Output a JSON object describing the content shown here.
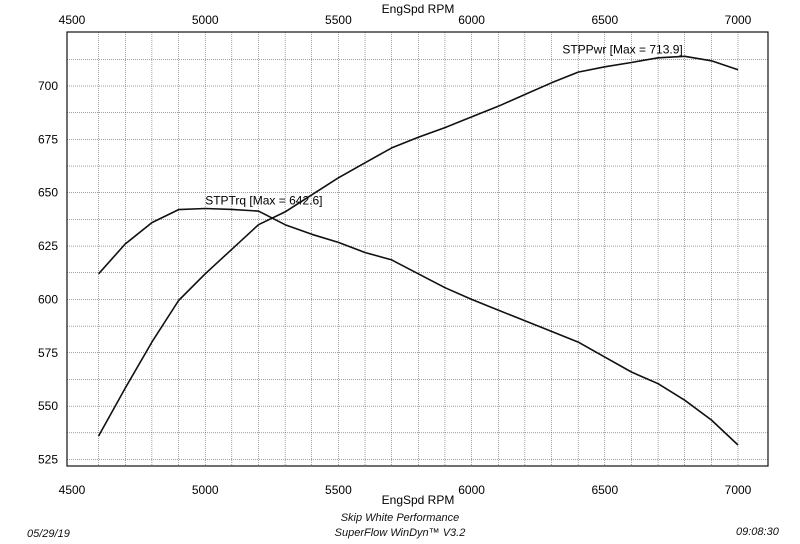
{
  "chart_data": {
    "type": "line",
    "xlabel": "EngSpd RPM",
    "xlim": [
      4500,
      7000
    ],
    "ylim": [
      525,
      725
    ],
    "x_ticks": [
      4500,
      5000,
      5500,
      6000,
      6500,
      7000
    ],
    "y_ticks": [
      525,
      550,
      575,
      600,
      625,
      650,
      675,
      700
    ],
    "grid": true,
    "series": [
      {
        "name": "STPTrq",
        "label": "STPTrq [Max = 642.6]",
        "x": [
          4600,
          4700,
          4800,
          4900,
          5000,
          5100,
          5200,
          5300,
          5400,
          5500,
          5600,
          5700,
          5800,
          5900,
          6000,
          6100,
          6200,
          6300,
          6400,
          6500,
          6600,
          6700,
          6800,
          6900,
          7000
        ],
        "y": [
          612,
          626,
          636,
          642.1,
          642.6,
          642.2,
          641.4,
          635,
          630.5,
          626.7,
          622,
          618.5,
          612,
          605.5,
          600,
          595,
          590,
          585,
          580,
          573,
          566,
          560.5,
          552.8,
          543.5,
          531.8
        ]
      },
      {
        "name": "STPPwr",
        "label": "STPPwr [Max = 713.9]",
        "x": [
          4600,
          4700,
          4800,
          4900,
          5000,
          5100,
          5200,
          5300,
          5400,
          5500,
          5600,
          5700,
          5800,
          5900,
          6000,
          6100,
          6200,
          6300,
          6400,
          6500,
          6600,
          6700,
          6800,
          6900,
          7000
        ],
        "y": [
          536,
          558.5,
          580,
          599.5,
          612,
          623.5,
          635,
          641,
          649,
          657,
          664,
          671,
          676,
          680.5,
          685.5,
          690.5,
          696,
          701.5,
          706.5,
          709,
          711,
          713.2,
          713.9,
          711.8,
          707.6
        ]
      }
    ]
  },
  "footer": {
    "date": "05/29/19",
    "time": "09:08:30",
    "company": "Skip White Performance",
    "software": "SuperFlow WinDyn™ V3.2"
  }
}
